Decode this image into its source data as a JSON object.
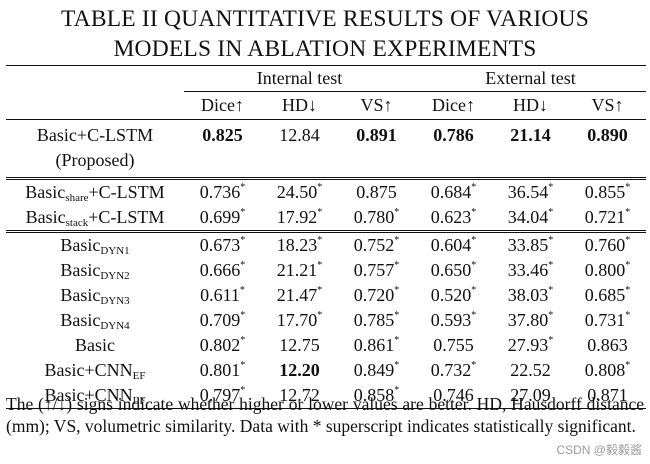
{
  "title_line1": "TABLE II QUANTITATIVE RESULTS OF VARIOUS",
  "title_line2": "MODELS IN ABLATION EXPERIMENTS",
  "group_internal": "Internal test",
  "group_external": "External test",
  "metrics": [
    "Dice↑",
    "HD↓",
    "VS↑",
    "Dice↑",
    "HD↓",
    "VS↑"
  ],
  "proposed": {
    "name": "Basic+C-LSTM",
    "note": "(Proposed)",
    "values": [
      "0.825",
      "12.84",
      "0.891",
      "0.786",
      "21.14",
      "0.890"
    ],
    "bold": [
      true,
      false,
      true,
      true,
      true,
      true
    ]
  },
  "rows": [
    {
      "pre": "Basic",
      "sub": "share",
      "post": "+C-LSTM",
      "values": [
        [
          "0.736",
          "*"
        ],
        [
          "24.50",
          "*"
        ],
        [
          "0.875",
          ""
        ],
        [
          "0.684",
          "*"
        ],
        [
          "36.54",
          "*"
        ],
        [
          "0.855",
          "*"
        ]
      ]
    },
    {
      "pre": "Basic",
      "sub": "stack",
      "post": "+C-LSTM",
      "values": [
        [
          "0.699",
          "*"
        ],
        [
          "17.92",
          "*"
        ],
        [
          "0.780",
          "*"
        ],
        [
          "0.623",
          "*"
        ],
        [
          "34.04",
          "*"
        ],
        [
          "0.721",
          "*"
        ]
      ]
    },
    {
      "pre": "Basic",
      "sub": "DYN1",
      "post": "",
      "sep": true,
      "values": [
        [
          "0.673",
          "*"
        ],
        [
          "18.23",
          "*"
        ],
        [
          "0.752",
          "*"
        ],
        [
          "0.604",
          "*"
        ],
        [
          "33.85",
          "*"
        ],
        [
          "0.760",
          "*"
        ]
      ]
    },
    {
      "pre": "Basic",
      "sub": "DYN2",
      "post": "",
      "values": [
        [
          "0.666",
          "*"
        ],
        [
          "21.21",
          "*"
        ],
        [
          "0.757",
          "*"
        ],
        [
          "0.650",
          "*"
        ],
        [
          "33.46",
          "*"
        ],
        [
          "0.800",
          "*"
        ]
      ]
    },
    {
      "pre": "Basic",
      "sub": "DYN3",
      "post": "",
      "values": [
        [
          "0.611",
          "*"
        ],
        [
          "21.47",
          "*"
        ],
        [
          "0.720",
          "*"
        ],
        [
          "0.520",
          "*"
        ],
        [
          "38.03",
          "*"
        ],
        [
          "0.685",
          "*"
        ]
      ]
    },
    {
      "pre": "Basic",
      "sub": "DYN4",
      "post": "",
      "values": [
        [
          "0.709",
          "*"
        ],
        [
          "17.70",
          "*"
        ],
        [
          "0.785",
          "*"
        ],
        [
          "0.593",
          "*"
        ],
        [
          "37.80",
          "*"
        ],
        [
          "0.731",
          "*"
        ]
      ]
    },
    {
      "pre": "Basic",
      "sub": "",
      "post": "",
      "values": [
        [
          "0.802",
          "*"
        ],
        [
          "12.75",
          ""
        ],
        [
          "0.861",
          "*"
        ],
        [
          "0.755",
          ""
        ],
        [
          "27.93",
          "*"
        ],
        [
          "0.863",
          ""
        ]
      ]
    },
    {
      "pre": "Basic+CNN",
      "sub": "EF",
      "post": "",
      "values": [
        [
          "0.801",
          "*"
        ],
        [
          "12.20",
          "",
          "bold"
        ],
        [
          "0.849",
          "*"
        ],
        [
          "0.732",
          "*"
        ],
        [
          "22.52",
          ""
        ],
        [
          "0.808",
          "*"
        ]
      ]
    },
    {
      "pre": "Basic+CNN",
      "sub": "LF",
      "post": "",
      "values": [
        [
          "0.797",
          "*"
        ],
        [
          "12.72",
          ""
        ],
        [
          "0.858",
          "*"
        ],
        [
          "0.746",
          ""
        ],
        [
          "27.09",
          ""
        ],
        [
          "0.871",
          ""
        ]
      ]
    }
  ],
  "footnote": "The (↑/↓) signs indicate whether higher or lower values are better. HD, Hausdorff distance (mm); VS, volumetric similarity. Data with * superscript indicates statistically significant.",
  "watermark": "CSDN @毅毅酱"
}
